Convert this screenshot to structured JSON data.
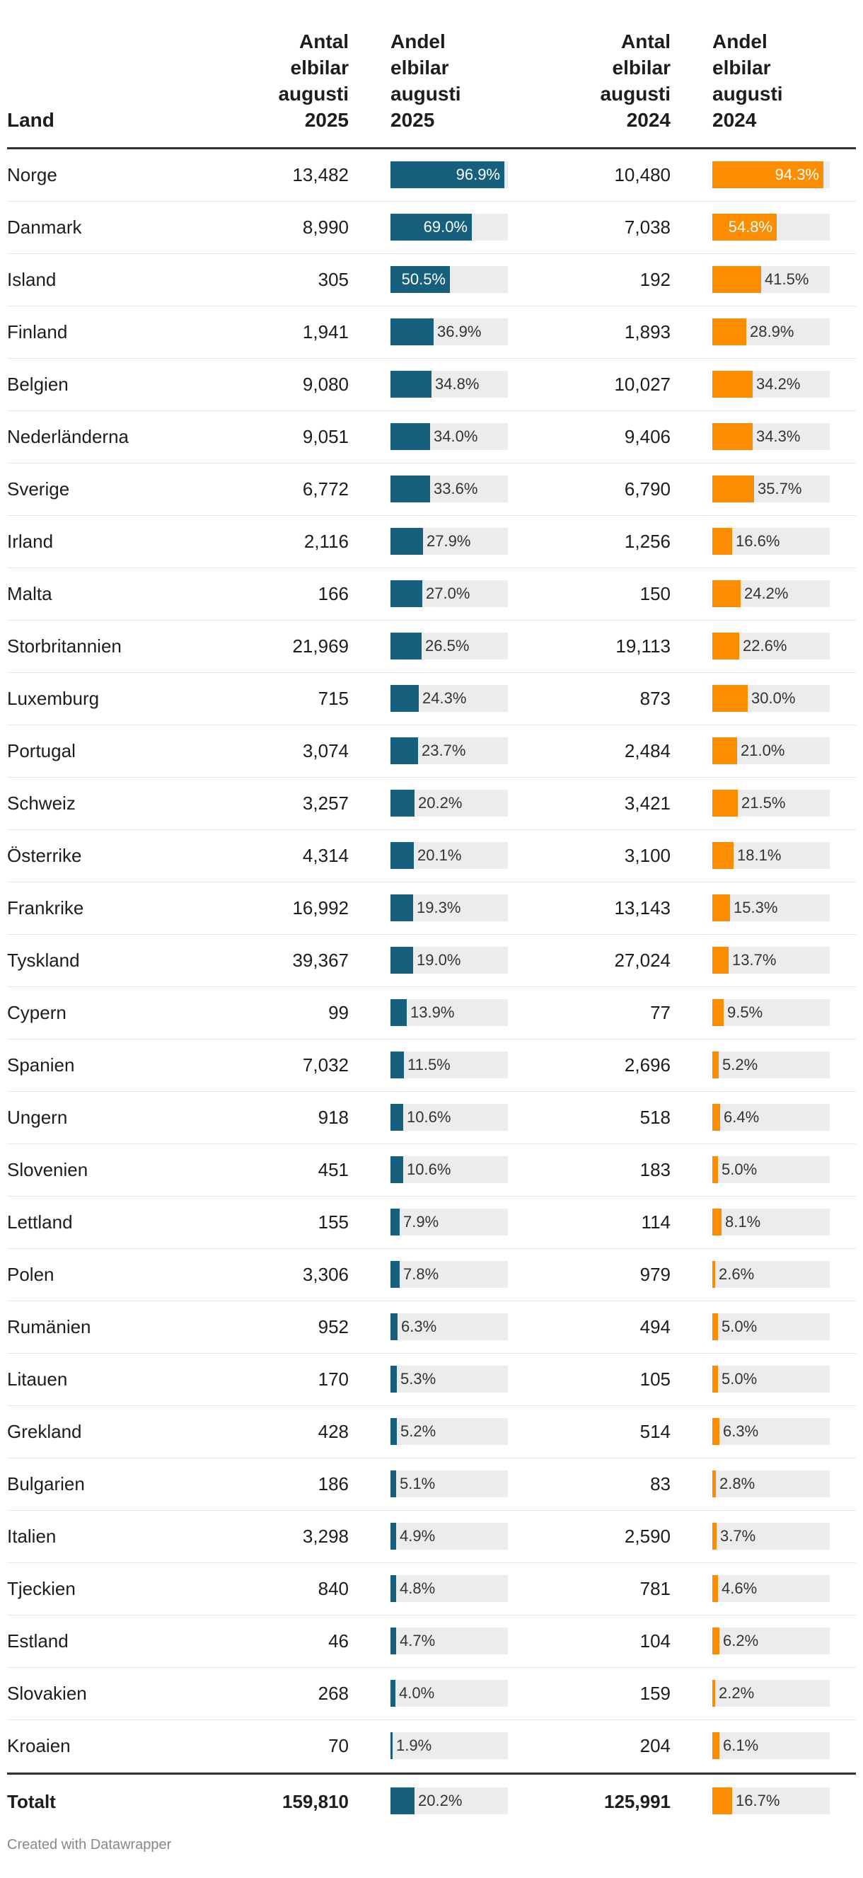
{
  "header": {
    "land": "Land",
    "count_2025": "Antal\nelbilar\naugusti\n2025",
    "share_2025": "Andel\nelbilar\naugusti\n2025",
    "count_2024": "Antal\nelbilar\naugusti\n2024",
    "share_2024": "Andel\nelbilar\naugusti\n2024"
  },
  "colors": {
    "share_2025": "#17607d",
    "share_2024": "#fd8d00",
    "track": "#ececec"
  },
  "chart_data": {
    "type": "table",
    "columns": [
      "Land",
      "Antal elbilar augusti 2025",
      "Andel elbilar augusti 2025",
      "Antal elbilar augusti 2024",
      "Andel elbilar augusti 2024"
    ],
    "bar_max": 100,
    "rows": [
      {
        "land": "Norge",
        "count_2025": "13,482",
        "share_2025": 96.9,
        "share_2025_label": "96.9%",
        "count_2024": "10,480",
        "share_2024": 94.3,
        "share_2024_label": "94.3%"
      },
      {
        "land": "Danmark",
        "count_2025": "8,990",
        "share_2025": 69.0,
        "share_2025_label": "69.0%",
        "count_2024": "7,038",
        "share_2024": 54.8,
        "share_2024_label": "54.8%"
      },
      {
        "land": "Island",
        "count_2025": "305",
        "share_2025": 50.5,
        "share_2025_label": "50.5%",
        "count_2024": "192",
        "share_2024": 41.5,
        "share_2024_label": "41.5%"
      },
      {
        "land": "Finland",
        "count_2025": "1,941",
        "share_2025": 36.9,
        "share_2025_label": "36.9%",
        "count_2024": "1,893",
        "share_2024": 28.9,
        "share_2024_label": "28.9%"
      },
      {
        "land": "Belgien",
        "count_2025": "9,080",
        "share_2025": 34.8,
        "share_2025_label": "34.8%",
        "count_2024": "10,027",
        "share_2024": 34.2,
        "share_2024_label": "34.2%"
      },
      {
        "land": "Nederländerna",
        "count_2025": "9,051",
        "share_2025": 34.0,
        "share_2025_label": "34.0%",
        "count_2024": "9,406",
        "share_2024": 34.3,
        "share_2024_label": "34.3%"
      },
      {
        "land": "Sverige",
        "count_2025": "6,772",
        "share_2025": 33.6,
        "share_2025_label": "33.6%",
        "count_2024": "6,790",
        "share_2024": 35.7,
        "share_2024_label": "35.7%"
      },
      {
        "land": "Irland",
        "count_2025": "2,116",
        "share_2025": 27.9,
        "share_2025_label": "27.9%",
        "count_2024": "1,256",
        "share_2024": 16.6,
        "share_2024_label": "16.6%"
      },
      {
        "land": "Malta",
        "count_2025": "166",
        "share_2025": 27.0,
        "share_2025_label": "27.0%",
        "count_2024": "150",
        "share_2024": 24.2,
        "share_2024_label": "24.2%"
      },
      {
        "land": "Storbritannien",
        "count_2025": "21,969",
        "share_2025": 26.5,
        "share_2025_label": "26.5%",
        "count_2024": "19,113",
        "share_2024": 22.6,
        "share_2024_label": "22.6%"
      },
      {
        "land": "Luxemburg",
        "count_2025": "715",
        "share_2025": 24.3,
        "share_2025_label": "24.3%",
        "count_2024": "873",
        "share_2024": 30.0,
        "share_2024_label": "30.0%"
      },
      {
        "land": "Portugal",
        "count_2025": "3,074",
        "share_2025": 23.7,
        "share_2025_label": "23.7%",
        "count_2024": "2,484",
        "share_2024": 21.0,
        "share_2024_label": "21.0%"
      },
      {
        "land": "Schweiz",
        "count_2025": "3,257",
        "share_2025": 20.2,
        "share_2025_label": "20.2%",
        "count_2024": "3,421",
        "share_2024": 21.5,
        "share_2024_label": "21.5%"
      },
      {
        "land": "Österrike",
        "count_2025": "4,314",
        "share_2025": 20.1,
        "share_2025_label": "20.1%",
        "count_2024": "3,100",
        "share_2024": 18.1,
        "share_2024_label": "18.1%"
      },
      {
        "land": "Frankrike",
        "count_2025": "16,992",
        "share_2025": 19.3,
        "share_2025_label": "19.3%",
        "count_2024": "13,143",
        "share_2024": 15.3,
        "share_2024_label": "15.3%"
      },
      {
        "land": "Tyskland",
        "count_2025": "39,367",
        "share_2025": 19.0,
        "share_2025_label": "19.0%",
        "count_2024": "27,024",
        "share_2024": 13.7,
        "share_2024_label": "13.7%"
      },
      {
        "land": "Cypern",
        "count_2025": "99",
        "share_2025": 13.9,
        "share_2025_label": "13.9%",
        "count_2024": "77",
        "share_2024": 9.5,
        "share_2024_label": "9.5%"
      },
      {
        "land": "Spanien",
        "count_2025": "7,032",
        "share_2025": 11.5,
        "share_2025_label": "11.5%",
        "count_2024": "2,696",
        "share_2024": 5.2,
        "share_2024_label": "5.2%"
      },
      {
        "land": "Ungern",
        "count_2025": "918",
        "share_2025": 10.6,
        "share_2025_label": "10.6%",
        "count_2024": "518",
        "share_2024": 6.4,
        "share_2024_label": "6.4%"
      },
      {
        "land": "Slovenien",
        "count_2025": "451",
        "share_2025": 10.6,
        "share_2025_label": "10.6%",
        "count_2024": "183",
        "share_2024": 5.0,
        "share_2024_label": "5.0%"
      },
      {
        "land": "Lettland",
        "count_2025": "155",
        "share_2025": 7.9,
        "share_2025_label": "7.9%",
        "count_2024": "114",
        "share_2024": 8.1,
        "share_2024_label": "8.1%"
      },
      {
        "land": "Polen",
        "count_2025": "3,306",
        "share_2025": 7.8,
        "share_2025_label": "7.8%",
        "count_2024": "979",
        "share_2024": 2.6,
        "share_2024_label": "2.6%"
      },
      {
        "land": "Rumänien",
        "count_2025": "952",
        "share_2025": 6.3,
        "share_2025_label": "6.3%",
        "count_2024": "494",
        "share_2024": 5.0,
        "share_2024_label": "5.0%"
      },
      {
        "land": "Litauen",
        "count_2025": "170",
        "share_2025": 5.3,
        "share_2025_label": "5.3%",
        "count_2024": "105",
        "share_2024": 5.0,
        "share_2024_label": "5.0%"
      },
      {
        "land": "Grekland",
        "count_2025": "428",
        "share_2025": 5.2,
        "share_2025_label": "5.2%",
        "count_2024": "514",
        "share_2024": 6.3,
        "share_2024_label": "6.3%"
      },
      {
        "land": "Bulgarien",
        "count_2025": "186",
        "share_2025": 5.1,
        "share_2025_label": "5.1%",
        "count_2024": "83",
        "share_2024": 2.8,
        "share_2024_label": "2.8%"
      },
      {
        "land": "Italien",
        "count_2025": "3,298",
        "share_2025": 4.9,
        "share_2025_label": "4.9%",
        "count_2024": "2,590",
        "share_2024": 3.7,
        "share_2024_label": "3.7%"
      },
      {
        "land": "Tjeckien",
        "count_2025": "840",
        "share_2025": 4.8,
        "share_2025_label": "4.8%",
        "count_2024": "781",
        "share_2024": 4.6,
        "share_2024_label": "4.6%"
      },
      {
        "land": "Estland",
        "count_2025": "46",
        "share_2025": 4.7,
        "share_2025_label": "4.7%",
        "count_2024": "104",
        "share_2024": 6.2,
        "share_2024_label": "6.2%"
      },
      {
        "land": "Slovakien",
        "count_2025": "268",
        "share_2025": 4.0,
        "share_2025_label": "4.0%",
        "count_2024": "159",
        "share_2024": 2.2,
        "share_2024_label": "2.2%"
      },
      {
        "land": "Kroaien",
        "count_2025": "70",
        "share_2025": 1.9,
        "share_2025_label": "1.9%",
        "count_2024": "204",
        "share_2024": 6.1,
        "share_2024_label": "6.1%"
      }
    ],
    "total": {
      "land": "Totalt",
      "count_2025": "159,810",
      "share_2025": 20.2,
      "share_2025_label": "20.2%",
      "count_2024": "125,991",
      "share_2024": 16.7,
      "share_2024_label": "16.7%"
    }
  },
  "footer": {
    "credit": "Created with Datawrapper"
  }
}
